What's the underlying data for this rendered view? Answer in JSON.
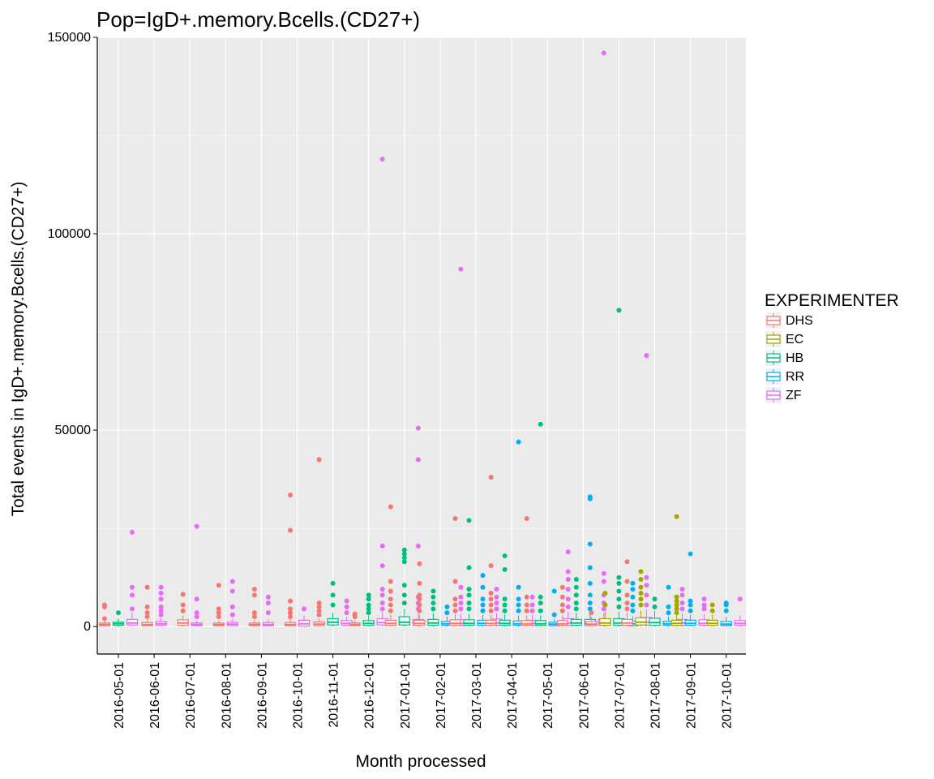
{
  "chart_data": {
    "type": "boxplot",
    "title": "Pop=IgD+.memory.Bcells.(CD27+)",
    "xlabel": "Month processed",
    "ylabel": "Total events in IgD+.memory.Bcells.(CD27+)",
    "ylim": [
      -7000,
      150000
    ],
    "yticks": [
      0,
      50000,
      100000,
      150000
    ],
    "grid": true,
    "legend": {
      "title": "EXPERIMENTER",
      "position": "right"
    },
    "categories": [
      "2016-05-01",
      "2016-06-01",
      "2016-07-01",
      "2016-08-01",
      "2016-09-01",
      "2016-10-01",
      "2016-11-01",
      "2016-12-01",
      "2017-01-01",
      "2017-02-01",
      "2017-03-01",
      "2017-04-01",
      "2017-05-01",
      "2017-06-01",
      "2017-07-01",
      "2017-08-01",
      "2017-09-01",
      "2017-10-01"
    ],
    "groups": [
      {
        "name": "DHS",
        "color": "#F8766D"
      },
      {
        "name": "EC",
        "color": "#A3A500"
      },
      {
        "name": "HB",
        "color": "#00BF7D"
      },
      {
        "name": "RR",
        "color": "#00B0F6"
      },
      {
        "name": "ZF",
        "color": "#E76BF3"
      }
    ],
    "boxes": [
      {
        "category": "2016-05-01",
        "group": "DHS",
        "q1": 200,
        "median": 500,
        "q3": 900,
        "whisker_low": 0,
        "whisker_high": 1500,
        "outliers": [
          2000,
          5000,
          5500
        ]
      },
      {
        "category": "2016-05-01",
        "group": "HB",
        "q1": 300,
        "median": 700,
        "q3": 1100,
        "whisker_low": 0,
        "whisker_high": 2000,
        "outliers": [
          3500
        ]
      },
      {
        "category": "2016-05-01",
        "group": "ZF",
        "q1": 400,
        "median": 900,
        "q3": 1800,
        "whisker_low": 0,
        "whisker_high": 3500,
        "outliers": [
          4500,
          8000,
          10000,
          24000
        ]
      },
      {
        "category": "2016-06-01",
        "group": "DHS",
        "q1": 200,
        "median": 500,
        "q3": 1000,
        "whisker_low": 0,
        "whisker_high": 1800,
        "outliers": [
          2500,
          3500,
          5000,
          10000
        ]
      },
      {
        "category": "2016-06-01",
        "group": "ZF",
        "q1": 300,
        "median": 700,
        "q3": 1300,
        "whisker_low": 0,
        "whisker_high": 2200,
        "outliers": [
          3000,
          4000,
          5000,
          7000,
          8500,
          10000
        ]
      },
      {
        "category": "2016-07-01",
        "group": "DHS",
        "q1": 300,
        "median": 900,
        "q3": 1700,
        "whisker_low": 0,
        "whisker_high": 2800,
        "outliers": [
          4000,
          5500,
          8200
        ]
      },
      {
        "category": "2016-07-01",
        "group": "ZF",
        "q1": 200,
        "median": 500,
        "q3": 900,
        "whisker_low": 0,
        "whisker_high": 1500,
        "outliers": [
          2500,
          3500,
          7000,
          25500
        ]
      },
      {
        "category": "2016-08-01",
        "group": "DHS",
        "q1": 200,
        "median": 500,
        "q3": 900,
        "whisker_low": 0,
        "whisker_high": 1500,
        "outliers": [
          2500,
          3500,
          4500,
          10500
        ]
      },
      {
        "category": "2016-08-01",
        "group": "ZF",
        "q1": 200,
        "median": 600,
        "q3": 1100,
        "whisker_low": 0,
        "whisker_high": 2000,
        "outliers": [
          3000,
          5000,
          9000,
          11500
        ]
      },
      {
        "category": "2016-09-01",
        "group": "DHS",
        "q1": 200,
        "median": 500,
        "q3": 900,
        "whisker_low": 0,
        "whisker_high": 1600,
        "outliers": [
          2500,
          3500,
          8000,
          9500
        ]
      },
      {
        "category": "2016-09-01",
        "group": "ZF",
        "q1": 200,
        "median": 500,
        "q3": 1000,
        "whisker_low": 0,
        "whisker_high": 1800,
        "outliers": [
          3500,
          6000,
          7500
        ]
      },
      {
        "category": "2016-10-01",
        "group": "DHS",
        "q1": 200,
        "median": 500,
        "q3": 1000,
        "whisker_low": 0,
        "whisker_high": 1800,
        "outliers": [
          2500,
          3500,
          4500,
          6500,
          24500,
          33500
        ]
      },
      {
        "category": "2016-10-01",
        "group": "ZF",
        "q1": 100,
        "median": 700,
        "q3": 1600,
        "whisker_low": 0,
        "whisker_high": 2800,
        "outliers": [
          4500
        ]
      },
      {
        "category": "2016-11-01",
        "group": "DHS",
        "q1": 200,
        "median": 600,
        "q3": 1200,
        "whisker_low": 0,
        "whisker_high": 2000,
        "outliers": [
          3000,
          4000,
          5000,
          6000,
          42500
        ]
      },
      {
        "category": "2016-11-01",
        "group": "HB",
        "q1": 400,
        "median": 1100,
        "q3": 2000,
        "whisker_low": 0,
        "whisker_high": 3500,
        "outliers": [
          5500,
          8000,
          11000
        ]
      },
      {
        "category": "2016-11-01",
        "group": "ZF",
        "q1": 300,
        "median": 800,
        "q3": 1500,
        "whisker_low": 0,
        "whisker_high": 2500,
        "outliers": [
          3500,
          5000,
          6500
        ]
      },
      {
        "category": "2016-12-01",
        "group": "DHS",
        "q1": 200,
        "median": 500,
        "q3": 900,
        "whisker_low": 0,
        "whisker_high": 1500,
        "outliers": [
          2500,
          3200
        ]
      },
      {
        "category": "2016-12-01",
        "group": "HB",
        "q1": 300,
        "median": 800,
        "q3": 1500,
        "whisker_low": 0,
        "whisker_high": 2800,
        "outliers": [
          3500,
          4500,
          5500,
          7000,
          8000
        ]
      },
      {
        "category": "2016-12-01",
        "group": "ZF",
        "q1": 400,
        "median": 1000,
        "q3": 2000,
        "whisker_low": 0,
        "whisker_high": 3800,
        "outliers": [
          4500,
          6000,
          8000,
          9500,
          15500,
          20500,
          119000
        ]
      },
      {
        "category": "2017-01-01",
        "group": "DHS",
        "q1": 300,
        "median": 800,
        "q3": 1600,
        "whisker_low": 0,
        "whisker_high": 3000,
        "outliers": [
          4000,
          5500,
          7000,
          9000,
          11500,
          30500
        ]
      },
      {
        "category": "2017-01-01",
        "group": "HB",
        "q1": 400,
        "median": 1100,
        "q3": 2500,
        "whisker_low": 0,
        "whisker_high": 4500,
        "outliers": [
          6000,
          8000,
          10500,
          16500,
          17500,
          18500,
          19500
        ]
      },
      {
        "category": "2017-01-01",
        "group": "ZF",
        "q1": 300,
        "median": 800,
        "q3": 1800,
        "whisker_low": 0,
        "whisker_high": 3500,
        "outliers": [
          4500,
          6000,
          7500,
          20500,
          42500,
          50500
        ]
      },
      {
        "category": "2017-02-01",
        "group": "DHS",
        "q1": 300,
        "median": 800,
        "q3": 1600,
        "whisker_low": 0,
        "whisker_high": 3000,
        "outliers": [
          4000,
          5500,
          7000,
          8000,
          11000,
          16000
        ]
      },
      {
        "category": "2017-02-01",
        "group": "HB",
        "q1": 300,
        "median": 900,
        "q3": 1800,
        "whisker_low": 0,
        "whisker_high": 3500,
        "outliers": [
          4500,
          6000,
          7500,
          9000
        ]
      },
      {
        "category": "2017-02-01",
        "group": "RR",
        "q1": 300,
        "median": 700,
        "q3": 1300,
        "whisker_low": 0,
        "whisker_high": 2500,
        "outliers": [
          3500,
          5000
        ]
      },
      {
        "category": "2017-02-01",
        "group": "ZF",
        "q1": 300,
        "median": 800,
        "q3": 1700,
        "whisker_low": 0,
        "whisker_high": 3200,
        "outliers": [
          4500,
          6000,
          7500,
          10000,
          91000
        ]
      },
      {
        "category": "2017-03-01",
        "group": "DHS",
        "q1": 300,
        "median": 800,
        "q3": 1700,
        "whisker_low": 0,
        "whisker_high": 3200,
        "outliers": [
          4000,
          5500,
          7000,
          11500,
          27500
        ]
      },
      {
        "category": "2017-03-01",
        "group": "HB",
        "q1": 300,
        "median": 800,
        "q3": 1700,
        "whisker_low": 0,
        "whisker_high": 3200,
        "outliers": [
          4500,
          6000,
          8000,
          9500,
          15000,
          27000
        ]
      },
      {
        "category": "2017-03-01",
        "group": "RR",
        "q1": 300,
        "median": 800,
        "q3": 1600,
        "whisker_low": 0,
        "whisker_high": 3000,
        "outliers": [
          4000,
          5500,
          7000,
          10000,
          13000
        ]
      },
      {
        "category": "2017-03-01",
        "group": "ZF",
        "q1": 300,
        "median": 900,
        "q3": 1900,
        "whisker_low": 0,
        "whisker_high": 3500,
        "outliers": [
          4500,
          6000,
          7500,
          9500
        ]
      },
      {
        "category": "2017-04-01",
        "group": "DHS",
        "q1": 300,
        "median": 800,
        "q3": 1600,
        "whisker_low": 0,
        "whisker_high": 3000,
        "outliers": [
          4000,
          5500,
          7000,
          8500,
          15500,
          38000
        ]
      },
      {
        "category": "2017-04-01",
        "group": "HB",
        "q1": 300,
        "median": 800,
        "q3": 1600,
        "whisker_low": 0,
        "whisker_high": 3000,
        "outliers": [
          4000,
          5500,
          7000,
          14500,
          18000
        ]
      },
      {
        "category": "2017-04-01",
        "group": "RR",
        "q1": 300,
        "median": 700,
        "q3": 1400,
        "whisker_low": 0,
        "whisker_high": 2800,
        "outliers": [
          4000,
          5500,
          7000,
          10000,
          47000
        ]
      },
      {
        "category": "2017-04-01",
        "group": "ZF",
        "q1": 300,
        "median": 800,
        "q3": 1600,
        "whisker_low": 0,
        "whisker_high": 3000,
        "outliers": [
          4000,
          5500,
          7500
        ]
      },
      {
        "category": "2017-05-01",
        "group": "DHS",
        "q1": 300,
        "median": 700,
        "q3": 1500,
        "whisker_low": 0,
        "whisker_high": 2800,
        "outliers": [
          4000,
          5500,
          7500,
          27500
        ]
      },
      {
        "category": "2017-05-01",
        "group": "HB",
        "q1": 300,
        "median": 700,
        "q3": 1500,
        "whisker_low": 0,
        "whisker_high": 2800,
        "outliers": [
          4000,
          6000,
          7500,
          51500
        ]
      },
      {
        "category": "2017-05-01",
        "group": "RR",
        "q1": 200,
        "median": 600,
        "q3": 1100,
        "whisker_low": 0,
        "whisker_high": 2000,
        "outliers": [
          3000,
          9000
        ]
      },
      {
        "category": "2017-05-01",
        "group": "ZF",
        "q1": 300,
        "median": 900,
        "q3": 2000,
        "whisker_low": 0,
        "whisker_high": 3800,
        "outliers": [
          5000,
          7000,
          9500,
          12000,
          14000,
          19000
        ]
      },
      {
        "category": "2017-06-01",
        "group": "DHS",
        "q1": 300,
        "median": 700,
        "q3": 1500,
        "whisker_low": 0,
        "whisker_high": 2800,
        "outliers": [
          4000,
          5500,
          7500,
          10000
        ]
      },
      {
        "category": "2017-06-01",
        "group": "HB",
        "q1": 300,
        "median": 900,
        "q3": 1800,
        "whisker_low": 0,
        "whisker_high": 3500,
        "outliers": [
          4500,
          6000,
          8000,
          10000,
          12000
        ]
      },
      {
        "category": "2017-06-01",
        "group": "RR",
        "q1": 300,
        "median": 800,
        "q3": 1800,
        "whisker_low": 0,
        "whisker_high": 3500,
        "outliers": [
          4500,
          6000,
          8000,
          11000,
          15000,
          21000,
          32500,
          33000
        ]
      },
      {
        "category": "2017-06-01",
        "group": "ZF",
        "q1": 300,
        "median": 900,
        "q3": 1800,
        "whisker_low": 0,
        "whisker_high": 3500,
        "outliers": [
          4500,
          6000,
          8000,
          11500,
          13500,
          146000
        ]
      },
      {
        "category": "2017-07-01",
        "group": "DHS",
        "q1": 200,
        "median": 600,
        "q3": 1300,
        "whisker_low": 0,
        "whisker_high": 2500,
        "outliers": [
          3500
        ]
      },
      {
        "category": "2017-07-01",
        "group": "EC",
        "q1": 300,
        "median": 900,
        "q3": 2000,
        "whisker_low": 0,
        "whisker_high": 3800,
        "outliers": [
          5500,
          8500
        ]
      },
      {
        "category": "2017-07-01",
        "group": "HB",
        "q1": 300,
        "median": 900,
        "q3": 2000,
        "whisker_low": 0,
        "whisker_high": 3800,
        "outliers": [
          5000,
          7000,
          9000,
          11000,
          12500,
          80500
        ]
      },
      {
        "category": "2017-07-01",
        "group": "RR",
        "q1": 200,
        "median": 700,
        "q3": 1400,
        "whisker_low": 0,
        "whisker_high": 2600,
        "outliers": [
          4000,
          5500,
          7500,
          9500,
          11000
        ]
      },
      {
        "category": "2017-07-01",
        "group": "ZF",
        "q1": 400,
        "median": 1100,
        "q3": 2300,
        "whisker_low": 0,
        "whisker_high": 4300,
        "outliers": [
          5500,
          8000,
          10500,
          12500,
          69000
        ]
      },
      {
        "category": "2017-08-01",
        "group": "DHS",
        "q1": 300,
        "median": 900,
        "q3": 1800,
        "whisker_low": 0,
        "whisker_high": 3500,
        "outliers": [
          4500,
          6000,
          8000,
          11500,
          16500
        ]
      },
      {
        "category": "2017-08-01",
        "group": "EC",
        "q1": 400,
        "median": 1100,
        "q3": 2200,
        "whisker_low": 0,
        "whisker_high": 4000,
        "outliers": [
          5500,
          7000,
          8500,
          10000,
          12000,
          14000
        ]
      },
      {
        "category": "2017-08-01",
        "group": "HB",
        "q1": 300,
        "median": 1000,
        "q3": 2100,
        "whisker_low": 0,
        "whisker_high": 4000,
        "outliers": [
          5000,
          7000
        ]
      },
      {
        "category": "2017-08-01",
        "group": "RR",
        "q1": 300,
        "median": 700,
        "q3": 1300,
        "whisker_low": 0,
        "whisker_high": 2500,
        "outliers": [
          3500,
          5000,
          10000
        ]
      },
      {
        "category": "2017-08-01",
        "group": "ZF",
        "q1": 300,
        "median": 900,
        "q3": 1800,
        "whisker_low": 0,
        "whisker_high": 3500,
        "outliers": [
          4500,
          6000,
          8000,
          9500
        ]
      },
      {
        "category": "2017-09-01",
        "group": "EC",
        "q1": 300,
        "median": 800,
        "q3": 1600,
        "whisker_low": 0,
        "whisker_high": 3000,
        "outliers": [
          3500,
          4500,
          5500,
          6500,
          7500,
          28000
        ]
      },
      {
        "category": "2017-09-01",
        "group": "RR",
        "q1": 300,
        "median": 800,
        "q3": 1600,
        "whisker_low": 0,
        "whisker_high": 3000,
        "outliers": [
          4000,
          5500,
          6500,
          18500
        ]
      },
      {
        "category": "2017-09-01",
        "group": "ZF",
        "q1": 300,
        "median": 800,
        "q3": 1700,
        "whisker_low": 0,
        "whisker_high": 3200,
        "outliers": [
          4500,
          5500,
          7000
        ]
      },
      {
        "category": "2017-10-01",
        "group": "EC",
        "q1": 300,
        "median": 800,
        "q3": 1600,
        "whisker_low": 0,
        "whisker_high": 3000,
        "outliers": [
          4000,
          5500
        ]
      },
      {
        "category": "2017-10-01",
        "group": "RR",
        "q1": 200,
        "median": 600,
        "q3": 1300,
        "whisker_low": 0,
        "whisker_high": 2500,
        "outliers": [
          4000,
          5500,
          6000
        ]
      },
      {
        "category": "2017-10-01",
        "group": "ZF",
        "q1": 300,
        "median": 800,
        "q3": 1500,
        "whisker_low": 0,
        "whisker_high": 2800,
        "outliers": [
          7000
        ]
      }
    ]
  }
}
